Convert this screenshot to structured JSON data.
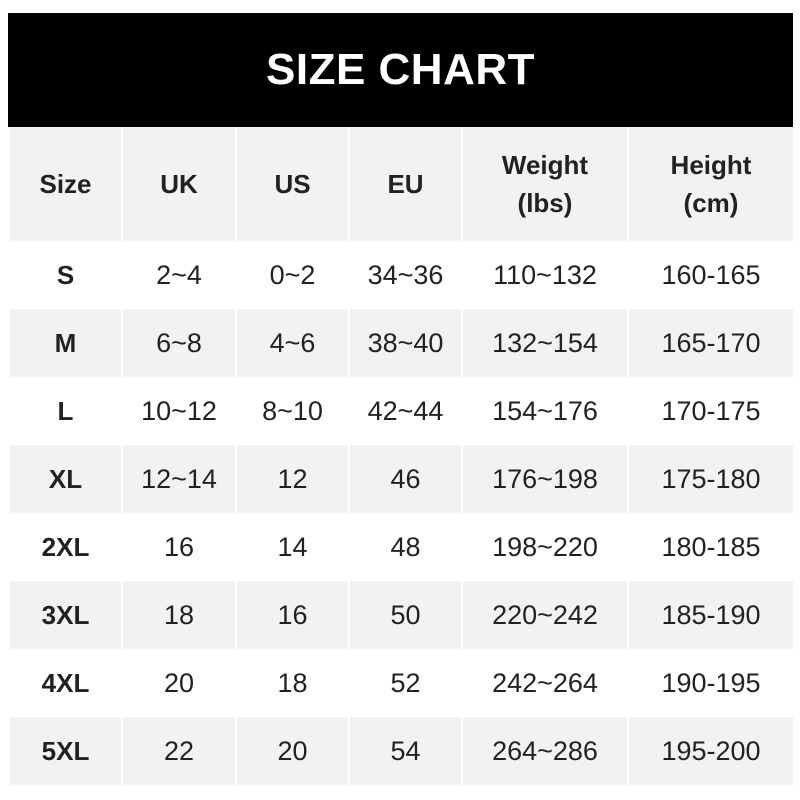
{
  "title": "SIZE CHART",
  "headers": [
    "Size",
    "UK",
    "US",
    "EU",
    "Weight\n(lbs)",
    "Height\n(cm)"
  ],
  "header_lines": [
    [
      "Size"
    ],
    [
      "UK"
    ],
    [
      "US"
    ],
    [
      "EU"
    ],
    [
      "Weight",
      "(lbs)"
    ],
    [
      "Height",
      "(cm)"
    ]
  ],
  "rows": [
    [
      "S",
      "2~4",
      "0~2",
      "34~36",
      "110~132",
      "160-165"
    ],
    [
      "M",
      "6~8",
      "4~6",
      "38~40",
      "132~154",
      "165-170"
    ],
    [
      "L",
      "10~12",
      "8~10",
      "42~44",
      "154~176",
      "170-175"
    ],
    [
      "XL",
      "12~14",
      "12",
      "46",
      "176~198",
      "175-180"
    ],
    [
      "2XL",
      "16",
      "14",
      "48",
      "198~220",
      "180-185"
    ],
    [
      "3XL",
      "18",
      "16",
      "50",
      "220~242",
      "185-190"
    ],
    [
      "4XL",
      "20",
      "18",
      "52",
      "242~264",
      "190-195"
    ],
    [
      "5XL",
      "22",
      "20",
      "54",
      "264~286",
      "195-200"
    ]
  ],
  "colors": {
    "header_bg": "#000000",
    "stripe": "#f2f2f2",
    "text": "#222222"
  }
}
